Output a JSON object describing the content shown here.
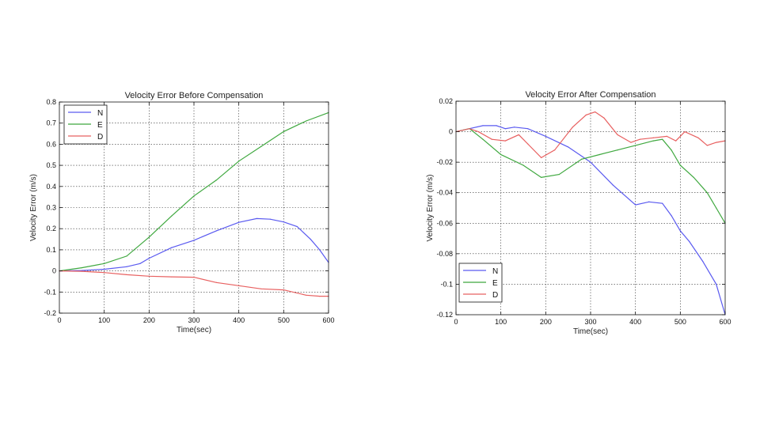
{
  "chart_data": [
    {
      "type": "line",
      "title": "Velocity Error Before Compensation",
      "xlabel": "Time(sec)",
      "ylabel": "Velocity Error (m/s)",
      "xlim": [
        0,
        600
      ],
      "ylim": [
        -0.2,
        0.8
      ],
      "xticks": [
        0,
        100,
        200,
        300,
        400,
        500,
        600
      ],
      "xtick_labels": [
        "0",
        "100",
        "200",
        "300",
        "400",
        "500",
        "600"
      ],
      "yticks": [
        -0.2,
        -0.1,
        0,
        0.1,
        0.2,
        0.3,
        0.4,
        0.5,
        0.6,
        0.7,
        0.8
      ],
      "ytick_labels": [
        "-0.2",
        "-0.1",
        "0",
        "0.1",
        "0.2",
        "0.3",
        "0.4",
        "0.5",
        "0.6",
        "0.7",
        "0.8"
      ],
      "grid": true,
      "legend_position": "top-left",
      "series": [
        {
          "name": "N",
          "color": "#5a5af0",
          "x": [
            0,
            50,
            100,
            150,
            180,
            200,
            250,
            300,
            350,
            400,
            440,
            470,
            500,
            530,
            560,
            580,
            600
          ],
          "y": [
            0,
            0.002,
            0.008,
            0.02,
            0.035,
            0.06,
            0.11,
            0.145,
            0.19,
            0.23,
            0.248,
            0.245,
            0.232,
            0.21,
            0.15,
            0.1,
            0.04
          ]
        },
        {
          "name": "E",
          "color": "#3fa83f",
          "x": [
            0,
            50,
            100,
            150,
            200,
            250,
            300,
            350,
            400,
            450,
            500,
            550,
            600
          ],
          "y": [
            0,
            0.015,
            0.035,
            0.07,
            0.16,
            0.26,
            0.355,
            0.43,
            0.52,
            0.59,
            0.66,
            0.71,
            0.75
          ]
        },
        {
          "name": "D",
          "color": "#e86060",
          "x": [
            0,
            50,
            100,
            150,
            200,
            250,
            300,
            350,
            400,
            450,
            500,
            550,
            580,
            600
          ],
          "y": [
            0,
            -0.002,
            -0.008,
            -0.018,
            -0.025,
            -0.028,
            -0.03,
            -0.055,
            -0.07,
            -0.085,
            -0.09,
            -0.115,
            -0.12,
            -0.12
          ]
        }
      ]
    },
    {
      "type": "line",
      "title": "Velocity Error After Compensation",
      "xlabel": "Time(sec)",
      "ylabel": "Velocity Error (m/s)",
      "xlim": [
        0,
        600
      ],
      "ylim": [
        -0.12,
        0.02
      ],
      "xticks": [
        0,
        100,
        200,
        300,
        400,
        500,
        600
      ],
      "xtick_labels": [
        "0",
        "100",
        "200",
        "300",
        "400",
        "500",
        "600"
      ],
      "yticks": [
        -0.12,
        -0.1,
        -0.08,
        -0.06,
        -0.04,
        -0.02,
        0,
        0.02
      ],
      "ytick_labels": [
        "-0.12",
        "-0.1",
        "-0.08",
        "-0.06",
        "-0.04",
        "-0.02",
        "0",
        "0.02"
      ],
      "grid": true,
      "legend_position": "bottom-left",
      "series": [
        {
          "name": "N",
          "color": "#5a5af0",
          "x": [
            0,
            30,
            60,
            90,
            110,
            130,
            160,
            200,
            250,
            300,
            350,
            400,
            430,
            460,
            480,
            500,
            520,
            550,
            580,
            600
          ],
          "y": [
            0,
            0.002,
            0.004,
            0.004,
            0.002,
            0.003,
            0.002,
            -0.003,
            -0.01,
            -0.02,
            -0.035,
            -0.048,
            -0.046,
            -0.047,
            -0.055,
            -0.065,
            -0.072,
            -0.085,
            -0.1,
            -0.12
          ]
        },
        {
          "name": "E",
          "color": "#3fa83f",
          "x": [
            0,
            30,
            60,
            100,
            150,
            190,
            230,
            280,
            320,
            360,
            400,
            440,
            460,
            480,
            500,
            530,
            560,
            580,
            600
          ],
          "y": [
            0,
            0.002,
            -0.005,
            -0.015,
            -0.022,
            -0.03,
            -0.028,
            -0.018,
            -0.015,
            -0.012,
            -0.009,
            -0.006,
            -0.005,
            -0.012,
            -0.022,
            -0.03,
            -0.04,
            -0.05,
            -0.06
          ]
        },
        {
          "name": "D",
          "color": "#e86060",
          "x": [
            0,
            30,
            50,
            80,
            110,
            140,
            160,
            190,
            220,
            260,
            290,
            310,
            330,
            360,
            390,
            410,
            440,
            470,
            490,
            510,
            540,
            560,
            580,
            600
          ],
          "y": [
            0,
            0.002,
            0,
            -0.005,
            -0.006,
            -0.002,
            -0.008,
            -0.017,
            -0.012,
            0.003,
            0.011,
            0.013,
            0.009,
            -0.002,
            -0.007,
            -0.005,
            -0.004,
            -0.003,
            -0.006,
            0,
            -0.004,
            -0.009,
            -0.007,
            -0.006
          ]
        }
      ]
    }
  ]
}
